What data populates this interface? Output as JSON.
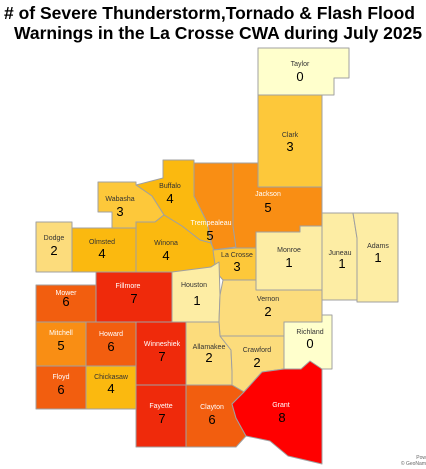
{
  "title": {
    "line1": "# of Severe Thunderstorm,Tornado & Flash Flood",
    "line2": "Warnings in the La Crosse CWA during July 2025"
  },
  "colors": {
    "c0": "#ffffcc",
    "c1": "#fdeda4",
    "c2": "#fcdc7c",
    "c3": "#fdc83a",
    "c4": "#fbb90f",
    "c5": "#f98e14",
    "c6": "#f25e0f",
    "c7": "#ef2a0b",
    "c8": "#ff0000",
    "border": "#a0a0a0"
  },
  "counties": [
    {
      "name": "Taylor",
      "value": 0
    },
    {
      "name": "Clark",
      "value": 3
    },
    {
      "name": "Buffalo",
      "value": 4
    },
    {
      "name": "Trempealeau",
      "value": 5
    },
    {
      "name": "Jackson",
      "value": 5
    },
    {
      "name": "Wabasha",
      "value": 3
    },
    {
      "name": "Dodge",
      "value": 2
    },
    {
      "name": "Olmsted",
      "value": 4
    },
    {
      "name": "Winona",
      "value": 4
    },
    {
      "name": "La Crosse",
      "value": 3
    },
    {
      "name": "Monroe",
      "value": 1
    },
    {
      "name": "Juneau",
      "value": 1
    },
    {
      "name": "Adams",
      "value": 1
    },
    {
      "name": "Mower",
      "value": 6
    },
    {
      "name": "Fillmore",
      "value": 7
    },
    {
      "name": "Houston",
      "value": 1
    },
    {
      "name": "Vernon",
      "value": 2
    },
    {
      "name": "Richland",
      "value": 0
    },
    {
      "name": "Mitchell",
      "value": 5
    },
    {
      "name": "Howard",
      "value": 6
    },
    {
      "name": "Winneshiek",
      "value": 7
    },
    {
      "name": "Allamakee",
      "value": 2
    },
    {
      "name": "Crawford",
      "value": 2
    },
    {
      "name": "Floyd",
      "value": 6
    },
    {
      "name": "Chickasaw",
      "value": 4
    },
    {
      "name": "Fayette",
      "value": 7
    },
    {
      "name": "Clayton",
      "value": 6
    },
    {
      "name": "Grant",
      "value": 8
    }
  ],
  "credit": {
    "line1": "Pow",
    "line2": "© GeoNam"
  }
}
